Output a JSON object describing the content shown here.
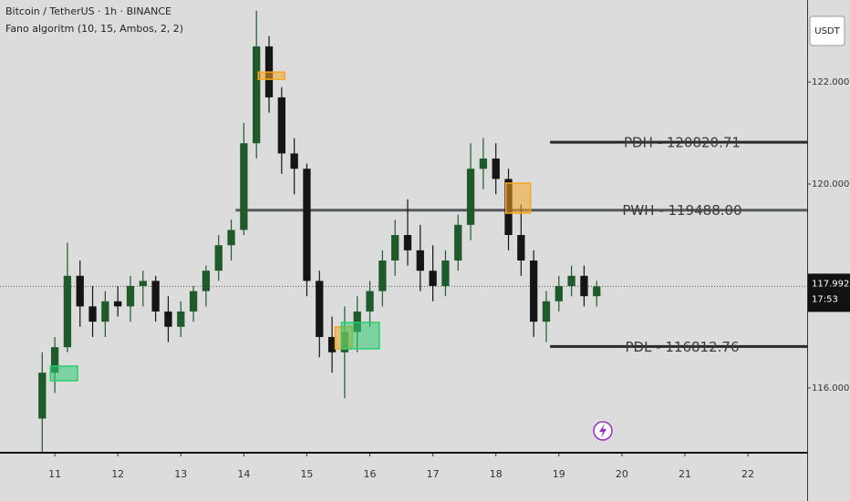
{
  "chart_data": {
    "type": "candlestick",
    "title": "Bitcoin / TetherUS · 1h · BINANCE",
    "subtitle": "Fano algoritm (10, 15, Ambos, 2, 2)",
    "currency": "USDT",
    "last_price": {
      "value": 117992.46,
      "label": "117.992,46"
    },
    "countdown": "17:53",
    "up_color": "#1f5a2a",
    "down_color": "#151515",
    "x": [
      10.8,
      11.0,
      11.2,
      11.4,
      11.6,
      11.8,
      12.0,
      12.2,
      12.4,
      12.6,
      12.8,
      13.0,
      13.2,
      13.4,
      13.6,
      13.8,
      14.0,
      14.2,
      14.4,
      14.6,
      14.8,
      15.0,
      15.2,
      15.4,
      15.6,
      15.8,
      16.0,
      16.2,
      16.4,
      16.6,
      16.8,
      17.0,
      17.2,
      17.4,
      17.6,
      17.8,
      18.0,
      18.2,
      18.4,
      18.6,
      18.8,
      19.0,
      19.2,
      19.4,
      19.6
    ],
    "open": [
      115400,
      116300,
      116800,
      118200,
      117600,
      117300,
      117700,
      117600,
      118000,
      118100,
      117500,
      117200,
      117500,
      117900,
      118300,
      118800,
      119100,
      120800,
      122700,
      121700,
      120600,
      120300,
      118100,
      117000,
      116700,
      117100,
      117500,
      117900,
      118500,
      119000,
      118700,
      118300,
      118000,
      118500,
      119200,
      120300,
      120500,
      120100,
      119000,
      118500,
      117300,
      117700,
      118000,
      118200,
      117800
    ],
    "high": [
      116700,
      117000,
      118850,
      118500,
      118000,
      117900,
      118000,
      118200,
      118300,
      118200,
      117800,
      117700,
      118000,
      118400,
      119000,
      119300,
      121200,
      123400,
      122900,
      121900,
      120900,
      120400,
      118300,
      117400,
      117600,
      117800,
      118100,
      118700,
      119300,
      119700,
      119200,
      118800,
      118700,
      119400,
      120800,
      120900,
      120800,
      120300,
      119600,
      118700,
      117900,
      118200,
      118400,
      118400,
      118100
    ],
    "low": [
      114750,
      115900,
      116700,
      117200,
      117000,
      117000,
      117400,
      117300,
      117600,
      117300,
      116900,
      117000,
      117300,
      117600,
      118100,
      118500,
      119000,
      120500,
      121400,
      120200,
      119800,
      117800,
      116600,
      116300,
      115800,
      116700,
      117200,
      117600,
      118200,
      118400,
      117900,
      117700,
      117800,
      118300,
      118900,
      119900,
      119800,
      118700,
      118200,
      117000,
      116900,
      117500,
      117800,
      117600,
      117600
    ],
    "close": [
      116300,
      116800,
      118200,
      117600,
      117300,
      117700,
      117600,
      118000,
      118100,
      117500,
      117200,
      117500,
      117900,
      118300,
      118800,
      119100,
      120800,
      122700,
      121700,
      120600,
      120300,
      118100,
      117000,
      116700,
      117100,
      117500,
      117900,
      118500,
      119000,
      118700,
      118300,
      118000,
      118500,
      119200,
      120300,
      120500,
      120100,
      119000,
      118500,
      117300,
      117700,
      118000,
      118200,
      117800,
      117992.46
    ],
    "xlim": [
      10.13,
      22.94
    ],
    "xticks": [
      11,
      12,
      13,
      14,
      15,
      16,
      17,
      18,
      19,
      20,
      21,
      22
    ],
    "ylim": [
      114730,
      123610
    ],
    "yticks": [
      {
        "value": 116000,
        "label": "116.000,00"
      },
      {
        "value": 120000,
        "label": "120.000,00"
      },
      {
        "value": 122000,
        "label": "122.000,00"
      }
    ],
    "levels": [
      {
        "label": "PDH - 120820.71",
        "value": 120820.71,
        "start": 18.86,
        "color": "#2a2a2a"
      },
      {
        "label": "PWH - 119488.00",
        "value": 119488.0,
        "start": 13.87,
        "color": "#55595f"
      },
      {
        "label": "PDL - 116812.76",
        "value": 116812.76,
        "start": 18.86,
        "color": "#2a2a2a"
      }
    ],
    "zones": [
      {
        "x0": 10.93,
        "x1": 11.36,
        "y0": 116429,
        "y1": 116143,
        "color": "#2ecc71"
      },
      {
        "x0": 14.23,
        "x1": 14.65,
        "y0": 122196,
        "y1": 122054,
        "color": "#f5a623"
      },
      {
        "x0": 15.45,
        "x1": 15.72,
        "y0": 117200,
        "y1": 116768,
        "color": "#f5a623"
      },
      {
        "x0": 15.55,
        "x1": 16.15,
        "y0": 117286,
        "y1": 116768,
        "color": "#2ecc71"
      },
      {
        "x0": 18.16,
        "x1": 18.55,
        "y0": 120018,
        "y1": 119429,
        "color": "#f5a623"
      }
    ]
  }
}
